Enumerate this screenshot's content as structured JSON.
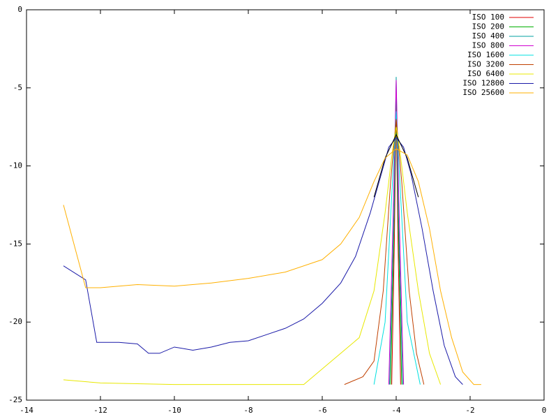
{
  "chart_data": {
    "type": "line",
    "xlim": [
      -14,
      0
    ],
    "xticks": [
      -14,
      -12,
      -10,
      -8,
      -6,
      -4,
      -2,
      0
    ],
    "ylim": [
      -25,
      0
    ],
    "yticks": [
      -25,
      -20,
      -15,
      -10,
      -5,
      0
    ],
    "legend": "top-right",
    "series": [
      {
        "name": "ISO 100",
        "color": "#e00000",
        "x": [
          -4.12,
          -4.05,
          -4.0,
          -3.95,
          -3.88
        ],
        "values": [
          -24,
          -15,
          -6,
          -15,
          -24
        ]
      },
      {
        "name": "ISO 200",
        "color": "#00b000",
        "x": [
          -4.15,
          -4.06,
          -4.0,
          -3.94,
          -3.85
        ],
        "values": [
          -24,
          -14,
          -5.5,
          -14,
          -24
        ]
      },
      {
        "name": "ISO 400",
        "color": "#00a0a0",
        "x": [
          -4.18,
          -4.06,
          -4.0,
          -3.94,
          -3.82
        ],
        "values": [
          -24,
          -13,
          -4.3,
          -13,
          -24
        ]
      },
      {
        "name": "ISO 800",
        "color": "#d000d0",
        "x": [
          -4.2,
          -4.07,
          -4.0,
          -3.93,
          -3.8
        ],
        "values": [
          -24,
          -12,
          -4.5,
          -12,
          -24
        ]
      },
      {
        "name": "ISO 1600",
        "color": "#00e0e0",
        "x": [
          -4.6,
          -4.3,
          -4.1,
          -4.0,
          -3.9,
          -3.7,
          -3.35
        ],
        "values": [
          -24,
          -20,
          -11,
          -6.5,
          -11,
          -20,
          -24
        ]
      },
      {
        "name": "ISO 3200",
        "color": "#c04000",
        "x": [
          -5.4,
          -4.9,
          -4.6,
          -4.35,
          -4.15,
          -4.0,
          -3.85,
          -3.65,
          -3.45,
          -3.25
        ],
        "values": [
          -24,
          -23.5,
          -22.5,
          -18,
          -11,
          -7,
          -11,
          -18,
          -22,
          -24
        ]
      },
      {
        "name": "ISO 6400",
        "color": "#e8e800",
        "x": [
          -13,
          -12,
          -10,
          -8,
          -6.5,
          -6,
          -5,
          -4.6,
          -4.3,
          -4.1,
          -4.0,
          -3.9,
          -3.7,
          -3.4,
          -3.1,
          -2.8
        ],
        "values": [
          -23.7,
          -23.9,
          -24,
          -24,
          -24,
          -23,
          -21,
          -18,
          -13,
          -9,
          -7.5,
          -9,
          -13,
          -18,
          -22,
          -24
        ]
      },
      {
        "name": "ISO 12800",
        "color": "#1a1aa8",
        "x": [
          -13,
          -12.4,
          -12.1,
          -11.5,
          -11,
          -10.7,
          -10.4,
          -10,
          -9.5,
          -9,
          -8.5,
          -8,
          -7.5,
          -7,
          -6.5,
          -6,
          -5.5,
          -5.1,
          -4.7,
          -4.4,
          -4.2,
          -4.0,
          -3.8,
          -3.6,
          -3.3,
          -3.0,
          -2.7,
          -2.4,
          -2.2
        ],
        "values": [
          -16.4,
          -17.3,
          -21.3,
          -21.3,
          -21.4,
          -22,
          -22,
          -21.6,
          -21.8,
          -21.6,
          -21.3,
          -21.2,
          -20.8,
          -20.4,
          -19.8,
          -18.8,
          -17.5,
          -15.8,
          -13,
          -10.5,
          -8.8,
          -8.2,
          -8.8,
          -10.5,
          -14,
          -18,
          -21.5,
          -23.5,
          -24
        ]
      },
      {
        "color": "#000000",
        "x": [
          -4.6,
          -4.3,
          -4.0,
          -3.7,
          -3.4
        ],
        "values": [
          -12,
          -9.5,
          -8,
          -9.5,
          -12
        ]
      },
      {
        "name": "ISO 25600",
        "color": "#ffb000",
        "x": [
          -13,
          -12.4,
          -12,
          -11,
          -10,
          -9,
          -8,
          -7,
          -6,
          -5.5,
          -5,
          -4.6,
          -4.3,
          -4.0,
          -3.7,
          -3.4,
          -3.1,
          -2.8,
          -2.5,
          -2.2,
          -1.9,
          -1.7
        ],
        "values": [
          -12.5,
          -17.8,
          -17.8,
          -17.6,
          -17.7,
          -17.5,
          -17.2,
          -16.8,
          -16,
          -15,
          -13.3,
          -11,
          -9.5,
          -8.9,
          -9.3,
          -11,
          -14,
          -18,
          -21,
          -23.2,
          -24,
          -24
        ]
      }
    ]
  }
}
